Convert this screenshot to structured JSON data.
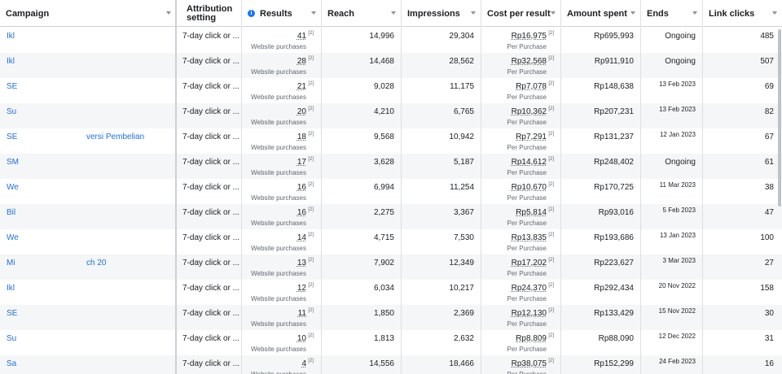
{
  "columns": {
    "campaign": "Campaign",
    "attribution": "Attribution setting",
    "results": "Results",
    "reach": "Reach",
    "impressions": "Impressions",
    "cost_per_result": "Cost per result",
    "amount_spent": "Amount spent",
    "ends": "Ends",
    "link_clicks": "Link clicks"
  },
  "results_subtext": "Website purchases",
  "cost_subtext": "Per Purchase",
  "footnote_ref": "[2]",
  "rows": [
    {
      "campaign": "Ikl",
      "campaign_extra": "",
      "attribution": "7-day click or ...",
      "results": "41",
      "reach": "14,996",
      "impressions": "29,304",
      "cost_per_result": "Rp16,975",
      "amount_spent": "Rp695,993",
      "ends": "Ongoing",
      "link_clicks": "485"
    },
    {
      "campaign": "Ikl",
      "campaign_extra": "",
      "attribution": "7-day click or ...",
      "results": "28",
      "reach": "14,468",
      "impressions": "28,562",
      "cost_per_result": "Rp32,568",
      "amount_spent": "Rp911,910",
      "ends": "Ongoing",
      "link_clicks": "507"
    },
    {
      "campaign": "SE",
      "campaign_extra": "",
      "attribution": "7-day click or ...",
      "results": "21",
      "reach": "9,028",
      "impressions": "11,175",
      "cost_per_result": "Rp7,078",
      "amount_spent": "Rp148,638",
      "ends": "13 Feb 2023",
      "link_clicks": "69"
    },
    {
      "campaign": "Su",
      "campaign_extra": "",
      "attribution": "7-day click or ...",
      "results": "20",
      "reach": "4,210",
      "impressions": "6,765",
      "cost_per_result": "Rp10,362",
      "amount_spent": "Rp207,231",
      "ends": "13 Feb 2023",
      "link_clicks": "82"
    },
    {
      "campaign": "SE",
      "campaign_extra": "versi Pembelian",
      "attribution": "7-day click or ...",
      "results": "18",
      "reach": "9,568",
      "impressions": "10,942",
      "cost_per_result": "Rp7,291",
      "amount_spent": "Rp131,237",
      "ends": "12 Jan 2023",
      "link_clicks": "67"
    },
    {
      "campaign": "SM",
      "campaign_extra": "",
      "attribution": "7-day click or ...",
      "results": "17",
      "reach": "3,628",
      "impressions": "5,187",
      "cost_per_result": "Rp14,612",
      "amount_spent": "Rp248,402",
      "ends": "Ongoing",
      "link_clicks": "61"
    },
    {
      "campaign": "We",
      "campaign_extra": "",
      "attribution": "7-day click or ...",
      "results": "16",
      "reach": "6,994",
      "impressions": "11,254",
      "cost_per_result": "Rp10,670",
      "amount_spent": "Rp170,725",
      "ends": "11 Mar 2023",
      "link_clicks": "38"
    },
    {
      "campaign": "Bil",
      "campaign_extra": "",
      "attribution": "7-day click or ...",
      "results": "16",
      "reach": "2,275",
      "impressions": "3,367",
      "cost_per_result": "Rp5,814",
      "amount_spent": "Rp93,016",
      "ends": "5 Feb 2023",
      "link_clicks": "47"
    },
    {
      "campaign": "We",
      "campaign_extra": "",
      "attribution": "7-day click or ...",
      "results": "14",
      "reach": "4,715",
      "impressions": "7,530",
      "cost_per_result": "Rp13,835",
      "amount_spent": "Rp193,686",
      "ends": "13 Jan 2023",
      "link_clicks": "100"
    },
    {
      "campaign": "Mi",
      "campaign_extra": "ch 20",
      "attribution": "7-day click or ...",
      "results": "13",
      "reach": "7,902",
      "impressions": "12,349",
      "cost_per_result": "Rp17,202",
      "amount_spent": "Rp223,627",
      "ends": "3 Mar 2023",
      "link_clicks": "27"
    },
    {
      "campaign": "Ikl",
      "campaign_extra": "",
      "attribution": "7-day click or ...",
      "results": "12",
      "reach": "6,034",
      "impressions": "10,217",
      "cost_per_result": "Rp24,370",
      "amount_spent": "Rp292,434",
      "ends": "20 Nov 2022",
      "link_clicks": "158"
    },
    {
      "campaign": "SE",
      "campaign_extra": "",
      "attribution": "7-day click or ...",
      "results": "11",
      "reach": "1,850",
      "impressions": "2,369",
      "cost_per_result": "Rp12,130",
      "amount_spent": "Rp133,429",
      "ends": "15 Nov 2022",
      "link_clicks": "30"
    },
    {
      "campaign": "Su",
      "campaign_extra": "",
      "attribution": "7-day click or ...",
      "results": "10",
      "reach": "1,813",
      "impressions": "2,632",
      "cost_per_result": "Rp8,809",
      "amount_spent": "Rp88,090",
      "ends": "12 Dec 2022",
      "link_clicks": "31"
    },
    {
      "campaign": "Sa",
      "campaign_extra": "",
      "attribution": "7-day click or ...",
      "results": "4",
      "reach": "14,556",
      "impressions": "18,466",
      "cost_per_result": "Rp38,075",
      "amount_spent": "Rp152,299",
      "ends": "24 Feb 2023",
      "link_clicks": "16"
    }
  ]
}
